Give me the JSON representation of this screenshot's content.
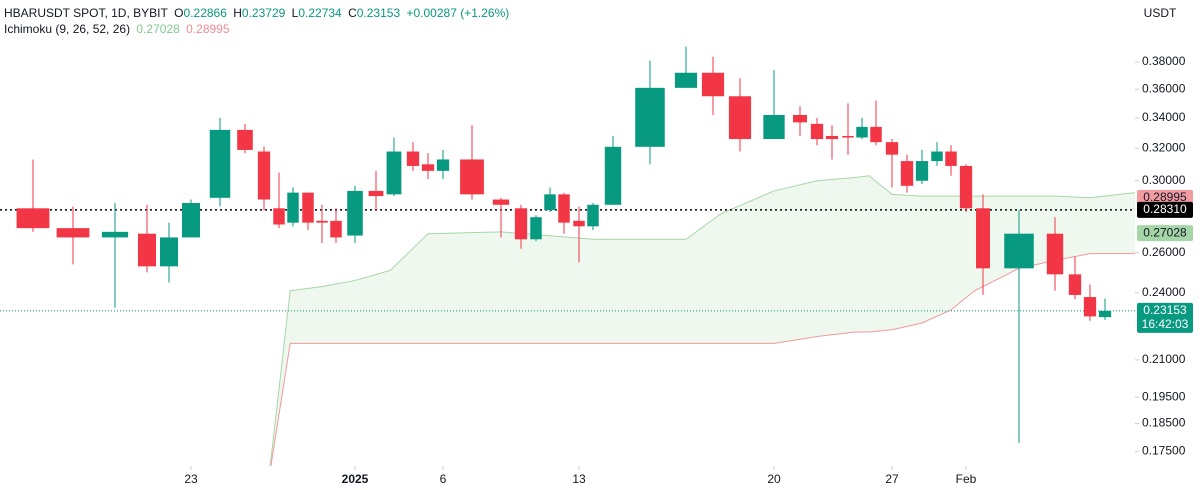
{
  "chart_data": {
    "type": "candlestick",
    "title": "HBARUSDT SPOT, 1D, BYBIT",
    "header": {
      "open_key": "O",
      "open": "0.22866",
      "high_key": "H",
      "high": "0.23729",
      "low_key": "L",
      "low": "0.22734",
      "close_key": "C",
      "close": "0.23153",
      "change": "+0.00287 (+1.26%)",
      "indicator": "Ichimoku (9, 26, 52, 26)",
      "indicator_a": "0.27028",
      "indicator_b": "0.28995"
    },
    "currency": "USDT",
    "log": true,
    "up_color": "#089981",
    "down_color": "#f23645",
    "ylim": [
      0.17,
      0.43
    ],
    "yticks": [
      {
        "value": 0.38,
        "label": "0.38000"
      },
      {
        "value": 0.36,
        "label": "0.36000"
      },
      {
        "value": 0.34,
        "label": "0.34000"
      },
      {
        "value": 0.32,
        "label": "0.32000"
      },
      {
        "value": 0.3,
        "label": "0.30000"
      },
      {
        "value": 0.26,
        "label": "0.26000"
      },
      {
        "value": 0.24,
        "label": "0.24000"
      },
      {
        "value": 0.21,
        "label": "0.21000"
      },
      {
        "value": 0.195,
        "label": "0.19500"
      },
      {
        "value": 0.185,
        "label": "0.18500"
      },
      {
        "value": 0.175,
        "label": "0.17500"
      }
    ],
    "xticks": [
      {
        "value": 5,
        "label": "23"
      },
      {
        "value": 14,
        "label": "2025"
      },
      {
        "value": 19,
        "label": "6"
      },
      {
        "value": 26,
        "label": "13"
      },
      {
        "value": 33,
        "label": "20"
      },
      {
        "value": 40,
        "label": "27"
      },
      {
        "value": 45,
        "label": "Feb"
      }
    ],
    "open": [
      0.284,
      0.273,
      0.268,
      0.27,
      0.253,
      0.268,
      0.29,
      0.332,
      0.318,
      0.284,
      0.276,
      0.293,
      0.277,
      0.277,
      0.269,
      0.294,
      0.292,
      0.318,
      0.31,
      0.306,
      0.313,
      0.289,
      0.284,
      0.267,
      0.283,
      0.292,
      0.277,
      0.274,
      0.286,
      0.321,
      0.361,
      0.372,
      0.355,
      0.326,
      0.342,
      0.336,
      0.328,
      0.328,
      0.327,
      0.334,
      0.324,
      0.312,
      0.3,
      0.312,
      0.318,
      0.309,
      0.284,
      0.252,
      0.27,
      0.249,
      0.238,
      0.22866
    ],
    "high": [
      0.313,
      0.285,
      0.287,
      0.286,
      0.276,
      0.289,
      0.34,
      0.336,
      0.321,
      0.305,
      0.296,
      0.293,
      0.286,
      0.284,
      0.297,
      0.306,
      0.327,
      0.324,
      0.317,
      0.319,
      0.335,
      0.29,
      0.286,
      0.28,
      0.296,
      0.293,
      0.285,
      0.287,
      0.328,
      0.381,
      0.392,
      0.384,
      0.368,
      0.374,
      0.348,
      0.34,
      0.335,
      0.35,
      0.34,
      0.352,
      0.326,
      0.316,
      0.319,
      0.324,
      0.322,
      0.31,
      0.292,
      0.283,
      0.279,
      0.258,
      0.244,
      0.23729
    ],
    "low": [
      0.271,
      0.254,
      0.233,
      0.25,
      0.245,
      0.268,
      0.285,
      0.317,
      0.283,
      0.273,
      0.274,
      0.272,
      0.265,
      0.265,
      0.265,
      0.283,
      0.291,
      0.306,
      0.301,
      0.301,
      0.289,
      0.268,
      0.262,
      0.266,
      0.282,
      0.27,
      0.255,
      0.272,
      0.286,
      0.31,
      0.361,
      0.342,
      0.318,
      0.326,
      0.328,
      0.322,
      0.313,
      0.316,
      0.326,
      0.322,
      0.296,
      0.293,
      0.298,
      0.309,
      0.303,
      0.282,
      0.239,
      0.178,
      0.241,
      0.237,
      0.227,
      0.22734
    ],
    "close": [
      0.273,
      0.268,
      0.271,
      0.253,
      0.268,
      0.287,
      0.332,
      0.319,
      0.289,
      0.275,
      0.293,
      0.276,
      0.276,
      0.268,
      0.294,
      0.291,
      0.318,
      0.309,
      0.306,
      0.313,
      0.292,
      0.286,
      0.267,
      0.279,
      0.292,
      0.276,
      0.274,
      0.286,
      0.321,
      0.361,
      0.372,
      0.355,
      0.326,
      0.342,
      0.337,
      0.326,
      0.326,
      0.327,
      0.334,
      0.324,
      0.316,
      0.297,
      0.312,
      0.318,
      0.309,
      0.284,
      0.252,
      0.27,
      0.249,
      0.239,
      0.229,
      0.23153
    ],
    "ichimoku": {
      "x": [
        8.3,
        9.8,
        12,
        14,
        15.8,
        18,
        21,
        27,
        30,
        31.3,
        33,
        35,
        37.5,
        38.5,
        40,
        42,
        44,
        45.5,
        47,
        48,
        50,
        53
      ],
      "span_a": [
        0.165,
        0.241,
        0.243,
        0.246,
        0.251,
        0.27,
        0.271,
        0.267,
        0.267,
        0.281,
        0.294,
        0.3,
        0.302,
        0.303,
        0.292,
        0.291,
        0.291,
        0.291,
        0.291,
        0.291,
        0.29,
        0.293
      ],
      "span_b": [
        0.165,
        0.217,
        0.217,
        0.217,
        0.217,
        0.217,
        0.217,
        0.217,
        0.217,
        0.217,
        0.217,
        0.22,
        0.222,
        0.222,
        0.223,
        0.226,
        0.232,
        0.241,
        0.252,
        0.256,
        0.2595,
        0.2595
      ],
      "span_a_color": "#a5d6a7",
      "span_b_color": "#ef9a9a",
      "cloud_color": "rgba(76,175,80,0.09)"
    },
    "price_lines": [
      {
        "value": 0.28995,
        "label": "0.28995",
        "color": "#f19ca3",
        "text_color": "#131722",
        "line": false
      },
      {
        "value": 0.2831,
        "label": "0.28310",
        "color": "#000000",
        "text_color": "#ffffff",
        "line": true
      },
      {
        "value": 0.27028,
        "label": "0.27028",
        "color": "#a5d6a7",
        "text_color": "#131722",
        "line": false
      },
      {
        "value": 0.23153,
        "label": "0.23153",
        "color": "#089981",
        "text_color": "#ffffff",
        "line": true
      }
    ],
    "countdown": "16:42:03"
  }
}
